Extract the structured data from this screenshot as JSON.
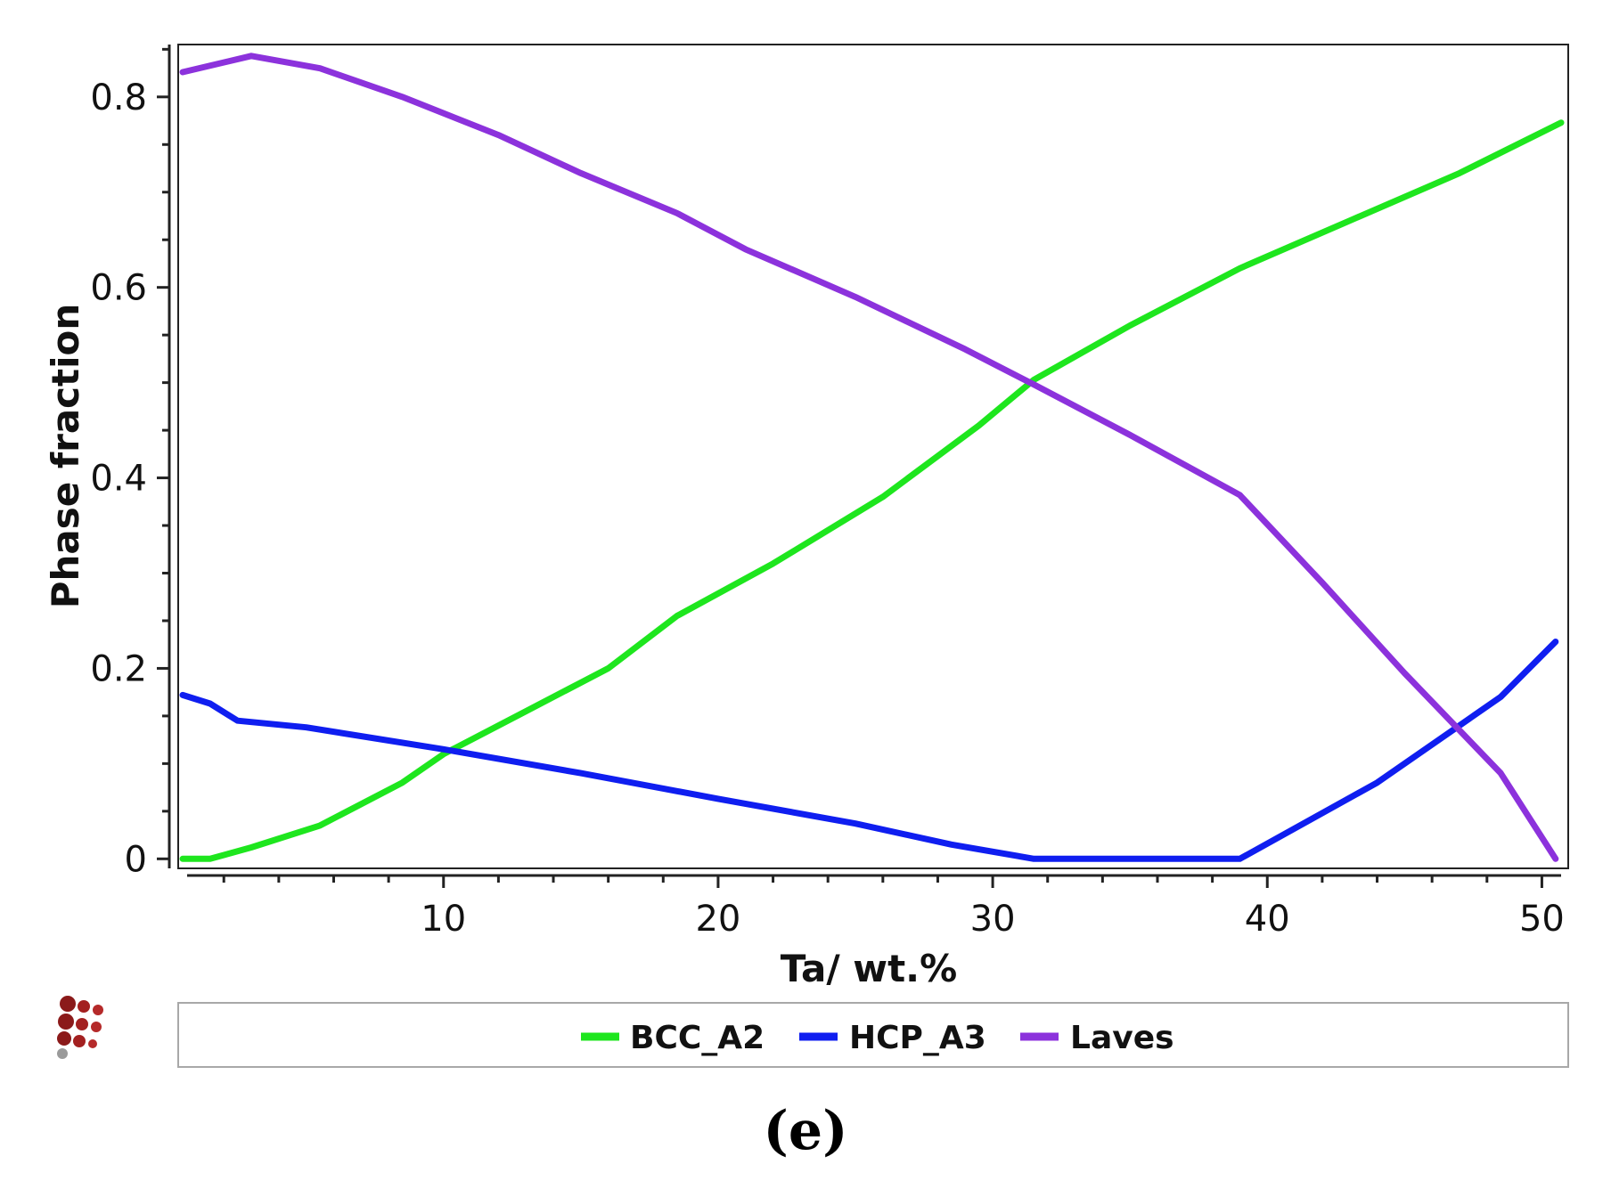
{
  "chart_data": {
    "type": "line",
    "title": "",
    "xlabel": "Ta/ wt.%",
    "ylabel": "Phase fraction",
    "xlim": [
      0.5,
      50.7
    ],
    "ylim": [
      -0.01,
      0.855
    ],
    "xticks": [
      10,
      20,
      30,
      40,
      50
    ],
    "xtick_labels": [
      "10",
      "20",
      "30",
      "40",
      "50"
    ],
    "yticks": [
      0,
      0.2,
      0.4,
      0.6,
      0.8
    ],
    "ytick_labels": [
      "0",
      "0.2",
      "0.4",
      "0.6",
      "0.8"
    ],
    "legend_position": "bottom",
    "panel_label": "(e)",
    "series": [
      {
        "name": "BCC_A2",
        "color": "#1ee61e",
        "points": [
          [
            0.5,
            0.0
          ],
          [
            1.5,
            0.0
          ],
          [
            3,
            0.012
          ],
          [
            5.5,
            0.035
          ],
          [
            8.5,
            0.08
          ],
          [
            10,
            0.11
          ],
          [
            13,
            0.155
          ],
          [
            16,
            0.2
          ],
          [
            18.5,
            0.255
          ],
          [
            22,
            0.31
          ],
          [
            26,
            0.38
          ],
          [
            29.5,
            0.455
          ],
          [
            31.5,
            0.503
          ],
          [
            35,
            0.56
          ],
          [
            39,
            0.62
          ],
          [
            43,
            0.67
          ],
          [
            47,
            0.72
          ],
          [
            50.7,
            0.773
          ]
        ]
      },
      {
        "name": "HCP_A3",
        "color": "#0f1ef0",
        "points": [
          [
            0.5,
            0.172
          ],
          [
            1.5,
            0.163
          ],
          [
            2.5,
            0.145
          ],
          [
            5,
            0.138
          ],
          [
            10,
            0.115
          ],
          [
            15,
            0.09
          ],
          [
            20,
            0.063
          ],
          [
            25,
            0.037
          ],
          [
            28.5,
            0.015
          ],
          [
            31.5,
            0.0
          ],
          [
            39,
            0.0
          ],
          [
            44,
            0.08
          ],
          [
            48.5,
            0.17
          ],
          [
            50.5,
            0.228
          ]
        ]
      },
      {
        "name": "Laves",
        "color": "#8c32dc",
        "points": [
          [
            0.5,
            0.826
          ],
          [
            3,
            0.843
          ],
          [
            5.5,
            0.83
          ],
          [
            8.5,
            0.8
          ],
          [
            12,
            0.76
          ],
          [
            15,
            0.72
          ],
          [
            18.5,
            0.678
          ],
          [
            21,
            0.64
          ],
          [
            25,
            0.59
          ],
          [
            29,
            0.535
          ],
          [
            31.5,
            0.498
          ],
          [
            35,
            0.445
          ],
          [
            39,
            0.382
          ],
          [
            42,
            0.29
          ],
          [
            45,
            0.195
          ],
          [
            48.5,
            0.09
          ],
          [
            49.5,
            0.045
          ],
          [
            50.5,
            0.0
          ]
        ]
      }
    ]
  }
}
